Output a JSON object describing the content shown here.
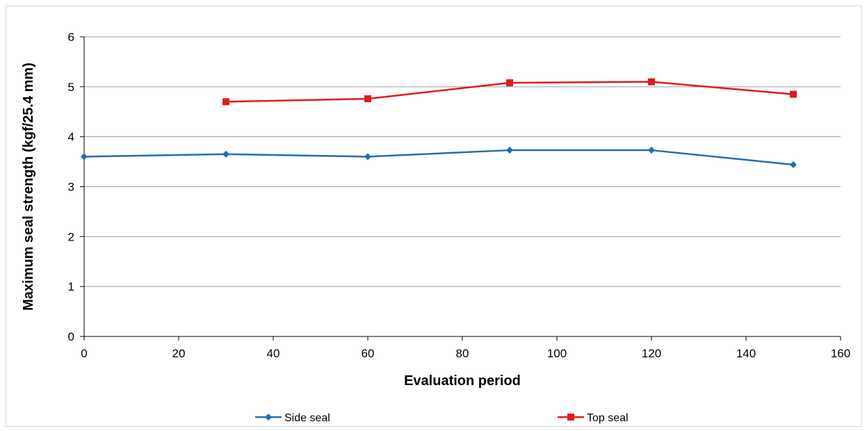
{
  "chart_data": {
    "type": "line",
    "title": "",
    "xlabel": "Evaluation period",
    "ylabel": "Maximum seal strength (kgf/25.4 mm)",
    "xlim": [
      0,
      160
    ],
    "ylim": [
      0,
      6
    ],
    "xticks": [
      0,
      20,
      40,
      60,
      80,
      100,
      120,
      140,
      160
    ],
    "yticks": [
      0,
      1,
      2,
      3,
      4,
      5,
      6
    ],
    "grid": "horizontal",
    "legend_position": "bottom",
    "series": [
      {
        "name": "Side seal",
        "color": "#1f6fb5",
        "marker": "diamond",
        "x": [
          0,
          30,
          60,
          90,
          120,
          150
        ],
        "y": [
          3.6,
          3.65,
          3.6,
          3.73,
          3.73,
          3.44
        ]
      },
      {
        "name": "Top seal",
        "color": "#e31a1a",
        "marker": "square",
        "x": [
          30,
          60,
          90,
          120,
          150
        ],
        "y": [
          4.7,
          4.76,
          5.08,
          5.1,
          4.85
        ]
      }
    ]
  }
}
